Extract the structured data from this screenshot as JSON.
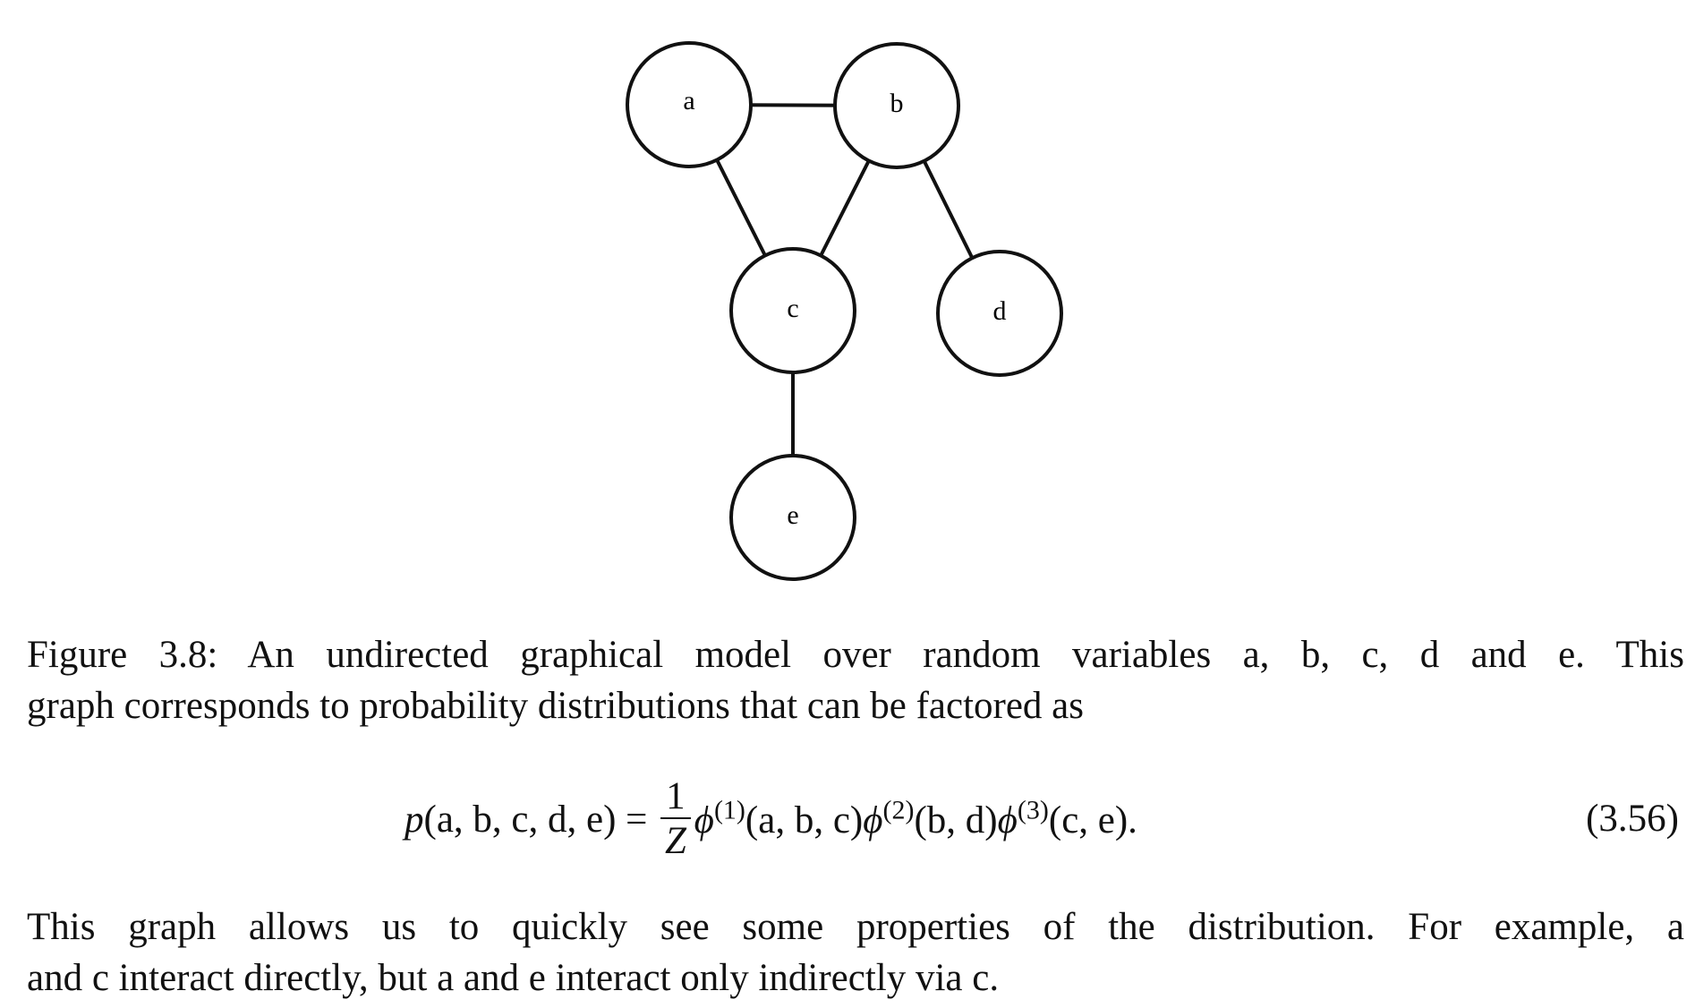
{
  "figure": {
    "nodes": [
      {
        "label": "a"
      },
      {
        "label": "b"
      },
      {
        "label": "c"
      },
      {
        "label": "d"
      },
      {
        "label": "e"
      }
    ],
    "caption_lines": [
      "Figure 3.8: An undirected graphical model over random variables a, b, c, d and e. This",
      "graph corresponds to probability distributions that can be factored as"
    ]
  },
  "equation": {
    "lhs_var": "p",
    "lhs_args": "(a, b, c, d, e)",
    "equals": "=",
    "numerator": "1",
    "denominator": "Z",
    "factors": [
      {
        "symbol": "ϕ",
        "superscript": "(1)",
        "args": "(a, b, c)"
      },
      {
        "symbol": "ϕ",
        "superscript": "(2)",
        "args": "(b, d)"
      },
      {
        "symbol": "ϕ",
        "superscript": "(3)",
        "args": "(c, e)."
      }
    ],
    "number": "(3.56)"
  },
  "paragraph_lines": [
    "This graph allows us to quickly see some properties of the distribution. For example, a",
    "and c interact directly, but a and e interact only indirectly via c."
  ]
}
